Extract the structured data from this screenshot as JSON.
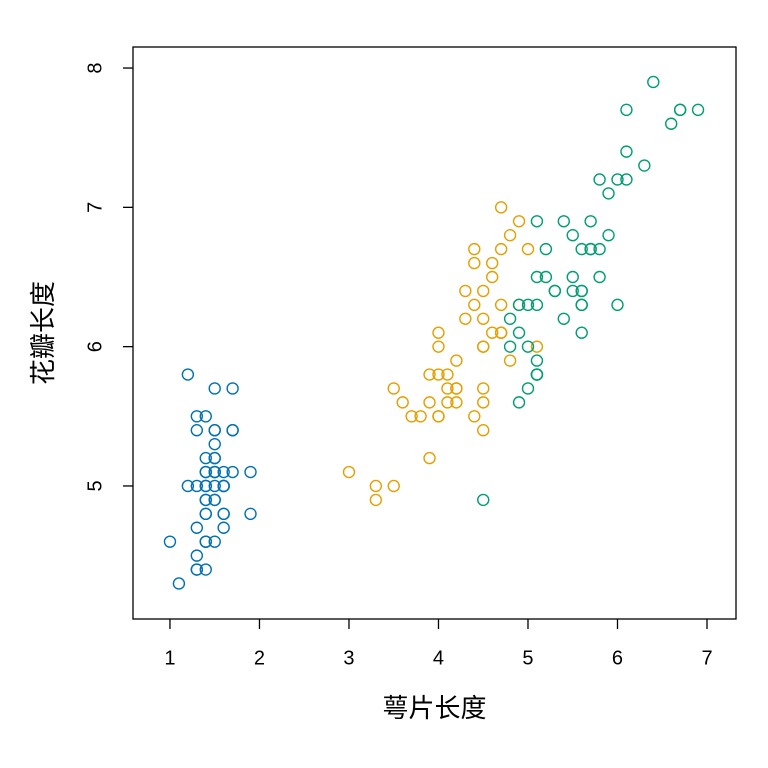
{
  "chart_data": {
    "type": "scatter",
    "x_label": "萼片长度",
    "y_label": "花瓣长度",
    "xlim": [
      0.587,
      7.324
    ],
    "ylim": [
      4.045,
      8.151
    ],
    "xticks": [
      1,
      2,
      3,
      4,
      5,
      6,
      7
    ],
    "yticks": [
      5,
      6,
      7,
      8
    ],
    "series": [
      {
        "color": "#0072B2",
        "x": [
          1.4,
          1.4,
          1.3,
          1.5,
          1.4,
          1.7,
          1.4,
          1.5,
          1.4,
          1.5,
          1.5,
          1.6,
          1.4,
          1.1,
          1.2,
          1.5,
          1.3,
          1.4,
          1.7,
          1.5,
          1.7,
          1.5,
          1.0,
          1.7,
          1.9,
          1.6,
          1.6,
          1.5,
          1.4,
          1.6,
          1.6,
          1.5,
          1.5,
          1.4,
          1.5,
          1.2,
          1.3,
          1.4,
          1.3,
          1.5,
          1.3,
          1.3,
          1.3,
          1.6,
          1.9,
          1.4,
          1.6,
          1.4,
          1.5,
          1.4
        ],
        "values": [
          5.1,
          4.9,
          4.7,
          4.6,
          5.0,
          5.4,
          4.6,
          5.0,
          4.4,
          4.9,
          5.4,
          4.8,
          4.8,
          4.3,
          5.8,
          5.7,
          5.4,
          5.1,
          5.7,
          5.1,
          5.4,
          5.1,
          4.6,
          5.1,
          4.8,
          5.0,
          5.0,
          5.2,
          5.2,
          4.7,
          4.8,
          5.4,
          5.2,
          5.5,
          4.9,
          5.0,
          5.5,
          4.9,
          4.4,
          5.1,
          5.0,
          4.5,
          4.4,
          5.0,
          5.1,
          4.8,
          5.1,
          4.6,
          5.3,
          5.0
        ]
      },
      {
        "color": "#E69F00",
        "x": [
          4.7,
          4.5,
          4.9,
          4.0,
          4.6,
          4.5,
          4.7,
          3.3,
          4.6,
          3.9,
          3.5,
          4.2,
          4.0,
          4.7,
          3.6,
          4.4,
          4.5,
          4.1,
          4.5,
          3.9,
          4.8,
          4.0,
          4.9,
          4.7,
          4.3,
          4.4,
          4.8,
          5.0,
          4.5,
          3.5,
          3.8,
          3.7,
          3.9,
          5.1,
          4.5,
          4.5,
          4.7,
          4.4,
          4.1,
          4.0,
          4.4,
          4.6,
          4.0,
          3.3,
          4.2,
          4.2,
          4.2,
          4.3,
          3.0,
          4.1
        ],
        "values": [
          7.0,
          6.4,
          6.9,
          5.5,
          6.5,
          5.7,
          6.3,
          4.9,
          6.6,
          5.2,
          5.0,
          5.9,
          6.0,
          6.1,
          5.6,
          6.7,
          5.6,
          5.8,
          6.2,
          5.6,
          5.9,
          6.1,
          6.3,
          6.1,
          6.4,
          6.6,
          6.8,
          6.7,
          6.0,
          5.7,
          5.5,
          5.5,
          5.8,
          6.0,
          5.4,
          6.0,
          6.7,
          6.3,
          5.6,
          5.5,
          5.5,
          6.1,
          5.8,
          5.0,
          5.6,
          5.7,
          5.7,
          6.2,
          5.1,
          5.7
        ]
      },
      {
        "color": "#009E73",
        "x": [
          6.0,
          5.1,
          5.9,
          5.6,
          5.8,
          6.6,
          4.5,
          6.3,
          5.8,
          6.1,
          5.1,
          5.3,
          5.5,
          5.0,
          5.1,
          5.3,
          5.5,
          6.7,
          6.9,
          5.0,
          5.7,
          4.9,
          6.7,
          4.9,
          5.7,
          6.0,
          4.8,
          4.9,
          5.6,
          5.8,
          6.1,
          6.4,
          5.6,
          5.1,
          5.6,
          6.1,
          5.6,
          5.5,
          4.8,
          5.4,
          5.6,
          5.1,
          5.1,
          5.9,
          5.7,
          5.2,
          5.0,
          5.2,
          5.4,
          5.1
        ],
        "values": [
          6.3,
          5.8,
          7.1,
          6.3,
          6.5,
          7.6,
          4.9,
          7.3,
          6.7,
          7.2,
          6.5,
          6.4,
          6.8,
          5.7,
          5.8,
          6.4,
          6.5,
          7.7,
          7.7,
          6.0,
          6.9,
          5.6,
          7.7,
          6.3,
          6.7,
          7.2,
          6.2,
          6.1,
          6.4,
          7.2,
          7.4,
          7.9,
          6.4,
          6.3,
          6.1,
          7.7,
          6.3,
          6.4,
          6.0,
          6.9,
          6.7,
          6.9,
          5.8,
          6.8,
          6.7,
          6.7,
          6.3,
          6.5,
          6.2,
          5.9
        ]
      }
    ]
  }
}
